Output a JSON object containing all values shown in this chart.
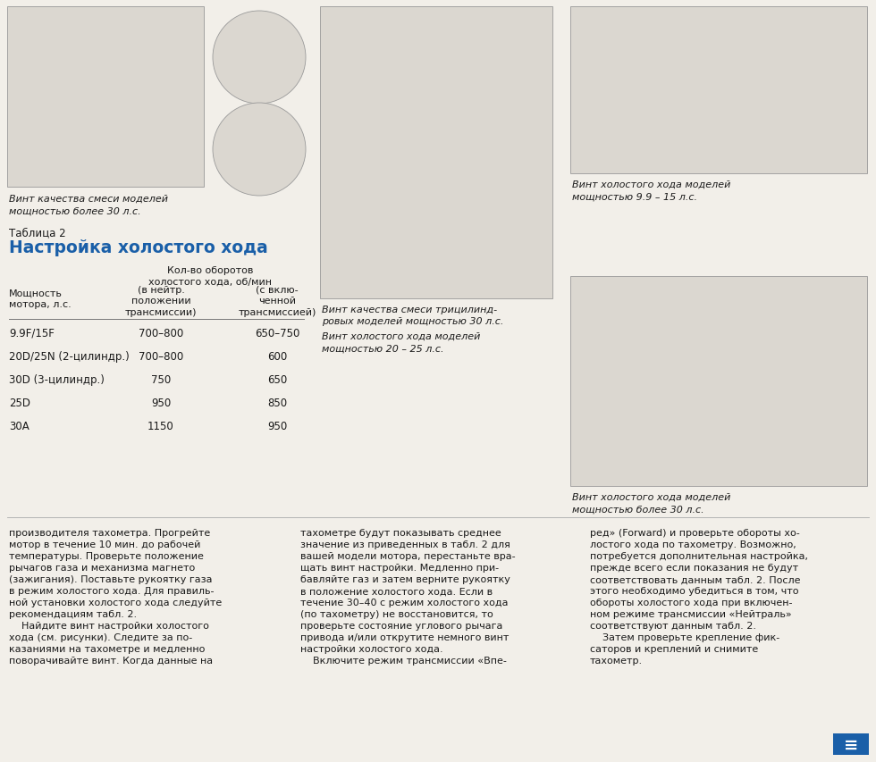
{
  "bg_color": "#f2efe9",
  "title_label": "Таблица 2",
  "title_main": "Настройка холостого хода",
  "title_color": "#1a5fa8",
  "table_header_col2": "Кол-во оборотов\nхолостого хода, об/мин",
  "table_subheader_col1": "Мощность\nмотора, л.с.",
  "table_subheader_col2a": "(в нейтр.\nположении\nтрансмиссии)",
  "table_subheader_col2b": "(с вклю-\nченной\nтрансмиссией)",
  "table_rows": [
    [
      "9.9F/15F",
      "700–800",
      "650–750"
    ],
    [
      "20D/25N (2-цилиндр.)",
      "700–800",
      "600"
    ],
    [
      "30D (3-цилиндр.)",
      "750",
      "650"
    ],
    [
      "25D",
      "950",
      "850"
    ],
    [
      "30A",
      "1150",
      "950"
    ]
  ],
  "caption_topleft": "Винт качества смеси моделей\nмощностью более 30 л.с.",
  "caption_topmid": "Винт качества смеси трицилинд-\nровых моделей мощностью 30 л.с.",
  "caption_topmid2": "Винт холостого хода моделей\nмощностью 20 – 25 л.с.",
  "caption_topright1": "Винт холостого хода моделей\nмощностью 9.9 – 15 л.с.",
  "caption_topright2": "Винт холостого хода моделей\nмощностью более 30 л.с.",
  "para1": "производителя тахометра. Прогрейте\nмотор в течение 10 мин. до рабочей\nтемпературы. Проверьте положение\nрычагов газа и механизма магнето\n(зажигания). Поставьте рукоятку газа\nв режим холостого хода. Для правиль-\nной установки холостого хода следуйте\nрекомендациям табл. 2.\n    Найдите винт настройки холостого\nхода (см. рисунки). Следите за по-\nказаниями на тахометре и медленно\nповорачивайте винт. Когда данные на",
  "para2": "тахометре будут показывать среднее\nзначение из приведенных в табл. 2 для\nвашей модели мотора, перестаньте вра-\nщать винт настройки. Медленно при-\nбавляйте газ и затем верните рукоятку\nв положение холостого хода. Если в\nтечение 30–40 с режим холостого хода\n(по тахометру) не восстановится, то\nпроверьте состояние углового рычага\nпривода и/или открутите немного винт\nнастройки холостого хода.\n    Включите режим трансмиссии «Впе-",
  "para3": "ред» (Forward) и проверьте обороты хо-\nлостого хода по тахометру. Возможно,\nпотребуется дополнительная настройка,\nпрежде всего если показания не будут\nсоответствовать данным табл. 2. После\nэтого необходимо убедиться в том, что\nобороты холостого хода при включен-\nном режиме трансмиссии «Нейтраль»\nсоответствуют данным табл. 2.\n    Затем проверьте крепление фик-\nсаторов и креплений и снимите\nтахометр."
}
